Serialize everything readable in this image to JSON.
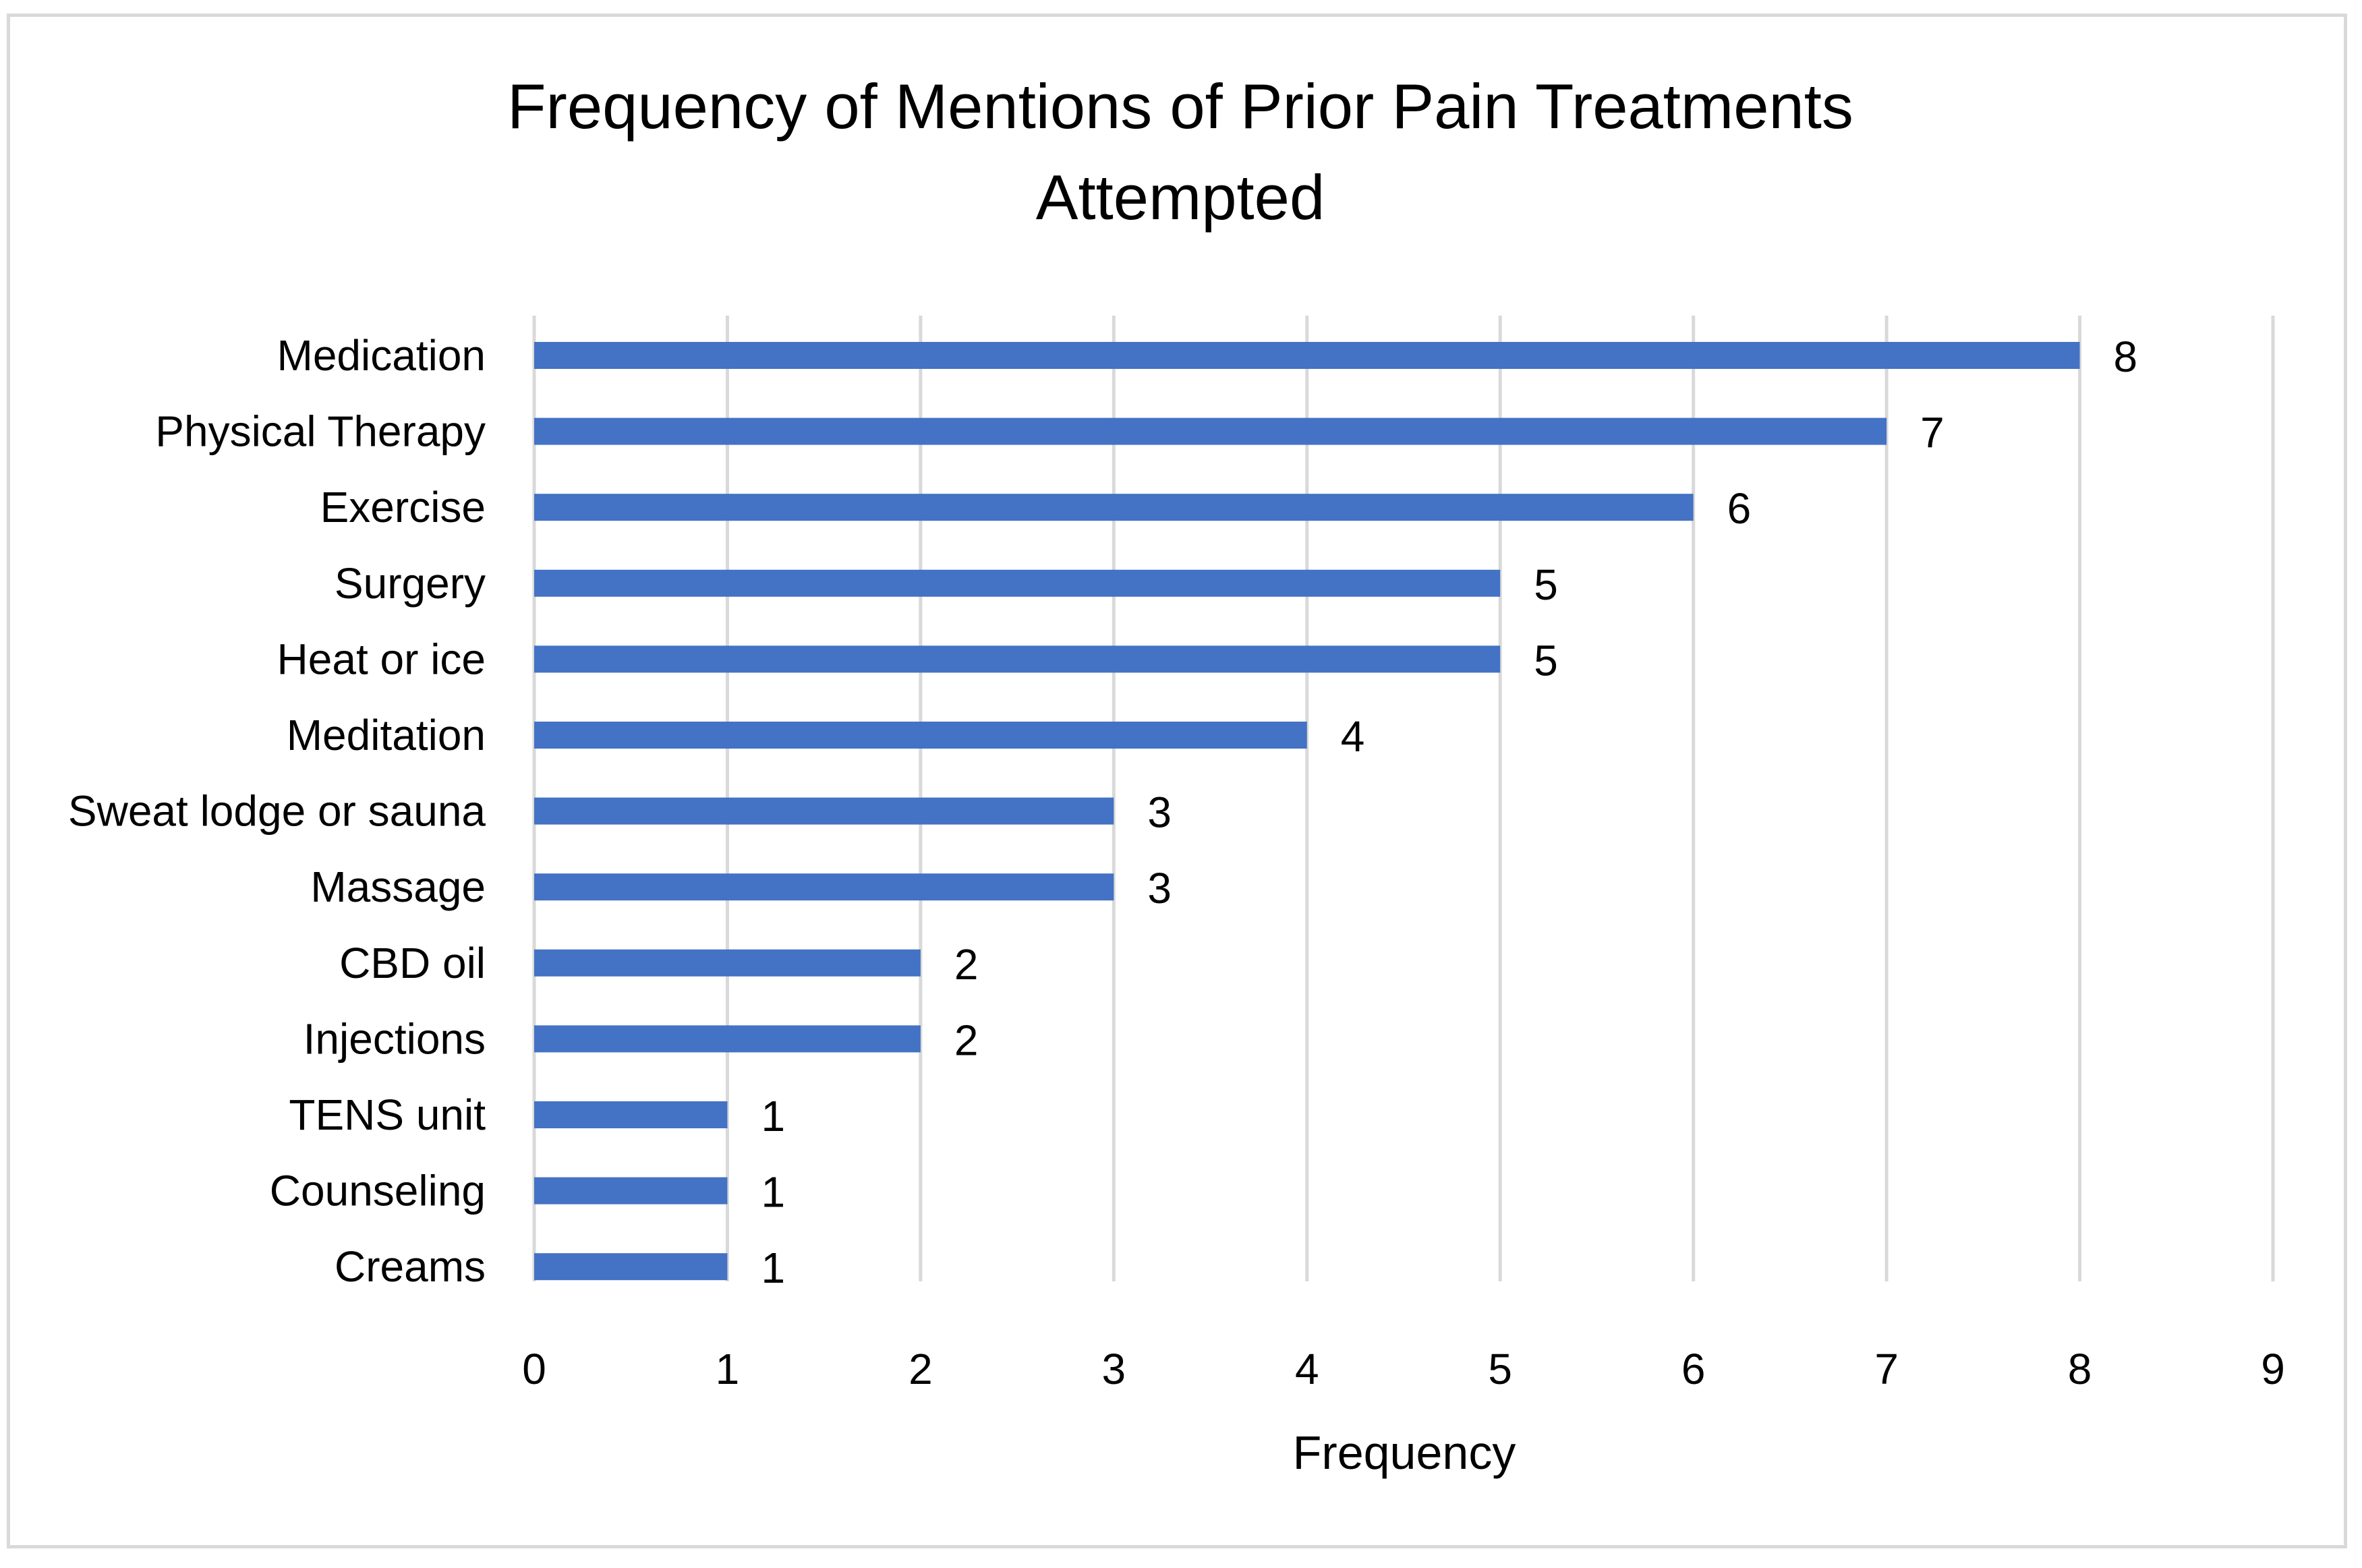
{
  "chart_data": {
    "type": "bar",
    "orientation": "horizontal",
    "title_lines": [
      "Frequency of Mentions of Prior Pain Treatments",
      "Attempted"
    ],
    "xlabel": "Frequency",
    "ylabel": "",
    "categories": [
      "Medication",
      "Physical Therapy",
      "Exercise",
      "Surgery",
      "Heat or ice",
      "Meditation",
      "Sweat lodge or sauna",
      "Massage",
      "CBD oil",
      "Injections",
      "TENS unit",
      "Counseling",
      "Creams"
    ],
    "values": [
      8,
      7,
      6,
      5,
      5,
      4,
      3,
      3,
      2,
      2,
      1,
      1,
      1
    ],
    "xlim": [
      0,
      9
    ],
    "xticks": [
      "0",
      "1",
      "2",
      "3",
      "4",
      "5",
      "6",
      "7",
      "8",
      "9"
    ],
    "data_labels": true,
    "grid": "vertical",
    "legend": "none",
    "colors": {
      "bar": "#4472c4",
      "grid": "#d9d9d9",
      "border": "#d9d9d9",
      "text": "#000000"
    }
  }
}
